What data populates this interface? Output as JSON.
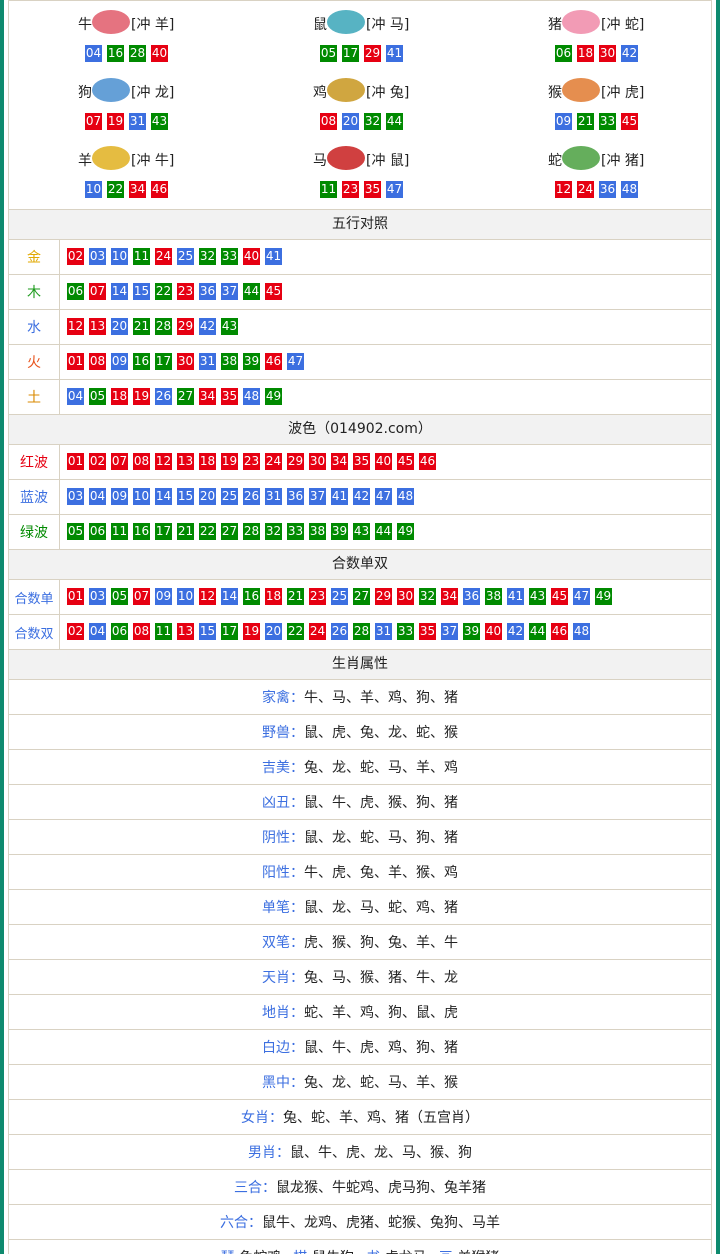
{
  "zodiac": [
    {
      "name": "牛",
      "clash": "[冲 羊]",
      "numbers": [
        "04",
        "16",
        "28",
        "40"
      ]
    },
    {
      "name": "鼠",
      "clash": "[冲 马]",
      "numbers": [
        "05",
        "17",
        "29",
        "41"
      ]
    },
    {
      "name": "猪",
      "clash": "[冲 蛇]",
      "numbers": [
        "06",
        "18",
        "30",
        "42"
      ]
    },
    {
      "name": "狗",
      "clash": "[冲 龙]",
      "numbers": [
        "07",
        "19",
        "31",
        "43"
      ]
    },
    {
      "name": "鸡",
      "clash": "[冲 兔]",
      "numbers": [
        "08",
        "20",
        "32",
        "44"
      ]
    },
    {
      "name": "猴",
      "clash": "[冲 虎]",
      "numbers": [
        "09",
        "21",
        "33",
        "45"
      ]
    },
    {
      "name": "羊",
      "clash": "[冲 牛]",
      "numbers": [
        "10",
        "22",
        "34",
        "46"
      ]
    },
    {
      "name": "马",
      "clash": "[冲 鼠]",
      "numbers": [
        "11",
        "23",
        "35",
        "47"
      ]
    },
    {
      "name": "蛇",
      "clash": "[冲 猪]",
      "numbers": [
        "12",
        "24",
        "36",
        "48"
      ]
    }
  ],
  "five_elements": {
    "title": "五行对照",
    "rows": [
      {
        "label": "金",
        "color": "#e0a800",
        "numbers": [
          "02",
          "03",
          "10",
          "11",
          "24",
          "25",
          "32",
          "33",
          "40",
          "41"
        ]
      },
      {
        "label": "木",
        "color": "#1a9a1a",
        "numbers": [
          "06",
          "07",
          "14",
          "15",
          "22",
          "23",
          "36",
          "37",
          "44",
          "45"
        ]
      },
      {
        "label": "水",
        "color": "#3c6fe0",
        "numbers": [
          "12",
          "13",
          "20",
          "21",
          "28",
          "29",
          "42",
          "43"
        ]
      },
      {
        "label": "火",
        "color": "#e8531c",
        "numbers": [
          "01",
          "08",
          "09",
          "16",
          "17",
          "30",
          "31",
          "38",
          "39",
          "46",
          "47"
        ]
      },
      {
        "label": "土",
        "color": "#d98a00",
        "numbers": [
          "04",
          "05",
          "18",
          "19",
          "26",
          "27",
          "34",
          "35",
          "48",
          "49"
        ]
      }
    ]
  },
  "waves": {
    "title": "波色（014902.com）",
    "rows": [
      {
        "label": "红波",
        "color": "#e60012",
        "numbers": [
          "01",
          "02",
          "07",
          "08",
          "12",
          "13",
          "18",
          "19",
          "23",
          "24",
          "29",
          "30",
          "34",
          "35",
          "40",
          "45",
          "46"
        ]
      },
      {
        "label": "蓝波",
        "color": "#3c6fe0",
        "numbers": [
          "03",
          "04",
          "09",
          "10",
          "14",
          "15",
          "20",
          "25",
          "26",
          "31",
          "36",
          "37",
          "41",
          "42",
          "47",
          "48"
        ]
      },
      {
        "label": "绿波",
        "color": "#008a00",
        "numbers": [
          "05",
          "06",
          "11",
          "16",
          "17",
          "21",
          "22",
          "27",
          "28",
          "32",
          "33",
          "38",
          "39",
          "43",
          "44",
          "49"
        ]
      }
    ]
  },
  "odd_even": {
    "title": "合数单双",
    "rows": [
      {
        "label": "合数单",
        "numbers": [
          "01",
          "03",
          "05",
          "07",
          "09",
          "10",
          "12",
          "14",
          "16",
          "18",
          "21",
          "23",
          "25",
          "27",
          "29",
          "30",
          "32",
          "34",
          "36",
          "38",
          "41",
          "43",
          "45",
          "47",
          "49"
        ]
      },
      {
        "label": "合数双",
        "numbers": [
          "02",
          "04",
          "06",
          "08",
          "11",
          "13",
          "15",
          "17",
          "19",
          "20",
          "22",
          "24",
          "26",
          "28",
          "31",
          "33",
          "35",
          "37",
          "39",
          "40",
          "42",
          "44",
          "46",
          "48"
        ]
      }
    ]
  },
  "attributes": {
    "title": "生肖属性",
    "rows": [
      {
        "label": "家禽：",
        "value": "牛、马、羊、鸡、狗、猪"
      },
      {
        "label": "野兽：",
        "value": "鼠、虎、兔、龙、蛇、猴"
      },
      {
        "label": "吉美：",
        "value": "兔、龙、蛇、马、羊、鸡"
      },
      {
        "label": "凶丑：",
        "value": "鼠、牛、虎、猴、狗、猪"
      },
      {
        "label": "阴性：",
        "value": "鼠、龙、蛇、马、狗、猪"
      },
      {
        "label": "阳性：",
        "value": "牛、虎、兔、羊、猴、鸡"
      },
      {
        "label": "单笔：",
        "value": "鼠、龙、马、蛇、鸡、猪"
      },
      {
        "label": "双笔：",
        "value": "虎、猴、狗、兔、羊、牛"
      },
      {
        "label": "天肖：",
        "value": "兔、马、猴、猪、牛、龙"
      },
      {
        "label": "地肖：",
        "value": "蛇、羊、鸡、狗、鼠、虎"
      },
      {
        "label": "白边：",
        "value": "鼠、牛、虎、鸡、狗、猪"
      },
      {
        "label": "黑中：",
        "value": "兔、龙、蛇、马、羊、猴"
      },
      {
        "label": "女肖：",
        "value": "兔、蛇、羊、鸡、猪（五宫肖）"
      },
      {
        "label": "男肖：",
        "value": "鼠、牛、虎、龙、马、猴、狗"
      },
      {
        "label": "三合：",
        "value": "鼠龙猴、牛蛇鸡、虎马狗、兔羊猪"
      },
      {
        "label": "六合：",
        "value": "鼠牛、龙鸡、虎猪、蛇猴、兔狗、马羊"
      }
    ],
    "arts": [
      {
        "label": "琴:",
        "value": "兔蛇鸡"
      },
      {
        "label": "棋:",
        "value": "鼠牛狗"
      },
      {
        "label": "书:",
        "value": "虎龙马"
      },
      {
        "label": "画:",
        "value": "羊猴猪"
      }
    ]
  }
}
